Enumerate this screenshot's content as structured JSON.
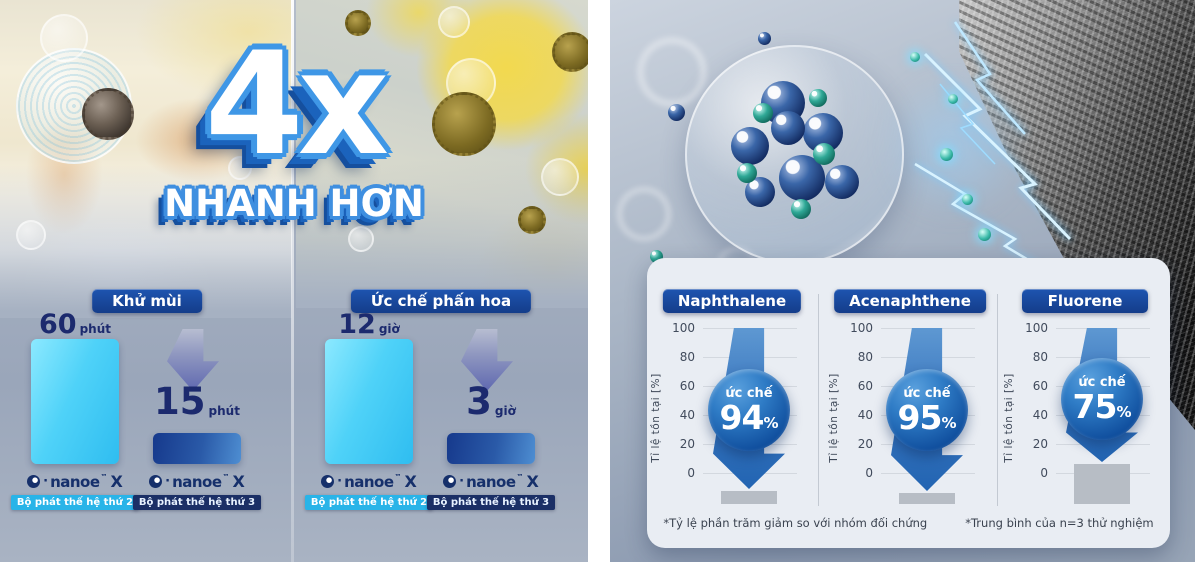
{
  "brand": {
    "dot": "·",
    "name": "nanoe",
    "tm": "™",
    "x": "X"
  },
  "ui": {
    "percent": "%"
  },
  "left_panel": {
    "headline": "4x",
    "subheadline": "NHANH HƠN"
  },
  "right_panel": {
    "footnotes": [
      "*Tỷ lệ phần trăm giảm so với nhóm đối chứng",
      "*Trung bình của n=3 thử nghiệm"
    ]
  },
  "colors": {
    "accent_navy": "#17469e",
    "cyan_bar": "#3cc9f5",
    "steel_bar": "#2e6eb5",
    "badge_cyan": "#29b4e8",
    "badge_navy": "#1b2f66",
    "circle_blue": "#11509f"
  },
  "chart_data": [
    {
      "type": "bar",
      "title": "Khử mùi",
      "categories": [
        "Bộ phát thế hệ thứ 2",
        "Bộ phát thế hệ thứ 3"
      ],
      "values": [
        60,
        15
      ],
      "unit": "phút",
      "annotation": "4x NHANH HƠN"
    },
    {
      "type": "bar",
      "title": "Ức chế phấn hoa",
      "categories": [
        "Bộ phát thế hệ thứ 2",
        "Bộ phát thế hệ thứ 3"
      ],
      "values": [
        12,
        3
      ],
      "unit": "giờ",
      "annotation": "4x NHANH HƠN"
    },
    {
      "type": "bar",
      "title": "Naphthalene",
      "ylabel": "Tỉ lệ tồn tại  [%]",
      "ylim": [
        0,
        100
      ],
      "yticks": [
        100,
        80,
        60,
        40,
        20,
        0
      ],
      "inhibition_label": "ức chế",
      "inhibition_pct": 94,
      "remaining_pct": 6
    },
    {
      "type": "bar",
      "title": "Acenaphthene",
      "ylabel": "Tỉ lệ tồn tại  [%]",
      "ylim": [
        0,
        100
      ],
      "yticks": [
        100,
        80,
        60,
        40,
        20,
        0
      ],
      "inhibition_label": "ức chế",
      "inhibition_pct": 95,
      "remaining_pct": 5
    },
    {
      "type": "bar",
      "title": "Fluorene",
      "ylabel": "Tỉ lệ tồn tại  [%]",
      "ylim": [
        0,
        100
      ],
      "yticks": [
        100,
        80,
        60,
        40,
        20,
        0
      ],
      "inhibition_label": "ức chế",
      "inhibition_pct": 75,
      "remaining_pct": 25
    }
  ]
}
